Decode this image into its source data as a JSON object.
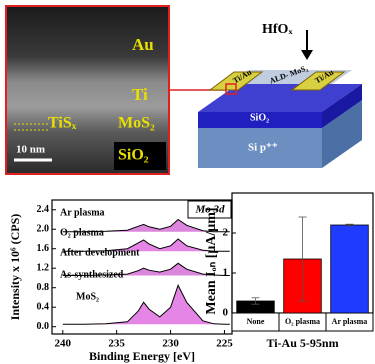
{
  "tem": {
    "labels": [
      "Au",
      "Ti",
      "TiSₓ",
      "MoS₂",
      "SiO₂"
    ],
    "scale": "10 nm"
  },
  "schematic": {
    "gate": "HfOₓ",
    "contact_left": "Ti/Au",
    "channel": "ALD- MoS₂",
    "contact_right": "Ti/Au",
    "oxide": "SiO₂",
    "substrate": "Si p⁺⁺"
  },
  "chart_data": [
    {
      "type": "line",
      "xlabel": "Binding Energy [eV]",
      "ylabel": "Intensity x 10⁶ (CPS)",
      "label_box": "Mo 3d",
      "annotations": [
        "Ar plasma",
        "O₂ plasma",
        "After development",
        "As-synthesized",
        "MoS₂"
      ],
      "x": [
        240,
        238,
        236,
        234,
        233,
        232.5,
        232,
        231,
        230,
        229.3,
        228.5,
        227,
        226,
        225,
        224.5
      ],
      "xlim": [
        241,
        224.3
      ],
      "xticks": [
        240,
        235,
        230,
        225
      ],
      "ylim": [
        -0.15,
        2.6
      ],
      "yticks": [
        {
          "value": 0,
          "label": "0.0"
        },
        0.4,
        0.8,
        {
          "value": 1.2,
          "label": "1.2"
        },
        1.6,
        {
          "value": 2,
          "label": "2.0"
        },
        2.4
      ],
      "series": [
        {
          "name": "Ar plasma",
          "color": "#000000",
          "values": [
            1.95,
            1.95,
            1.96,
            1.98,
            2.06,
            2.1,
            2.05,
            2.0,
            2.06,
            2.2,
            2.08,
            1.97,
            1.95,
            1.95,
            1.95
          ]
        },
        {
          "name": "O₂ plasma",
          "color": "#000000",
          "values": [
            1.55,
            1.55,
            1.56,
            1.6,
            1.72,
            1.78,
            1.7,
            1.6,
            1.66,
            1.8,
            1.66,
            1.57,
            1.55,
            1.55,
            1.55
          ]
        },
        {
          "name": "After development",
          "color": "#000000",
          "values": [
            1.05,
            1.05,
            1.06,
            1.08,
            1.15,
            1.2,
            1.16,
            1.12,
            1.18,
            1.3,
            1.18,
            1.08,
            1.06,
            1.05,
            1.05
          ]
        },
        {
          "name": "As-synthesized",
          "color": "#000000",
          "values": [
            0.05,
            0.05,
            0.06,
            0.1,
            0.32,
            0.5,
            0.36,
            0.2,
            0.4,
            0.85,
            0.5,
            0.12,
            0.06,
            0.05,
            0.05
          ]
        }
      ]
    },
    {
      "type": "bar",
      "ylabel": "Mean Iₒₙ [μA/μm]",
      "xlabel": "Ti-Au 5-95nm",
      "categories": [
        "None",
        "O₂ plasma",
        "Ar plasma"
      ],
      "values": [
        0.3,
        1.35,
        2.2
      ],
      "errors": [
        0.08,
        1.05,
        0.02
      ],
      "colors": [
        "#000000",
        "#ff0000",
        "#1f3bff"
      ],
      "ylim": [
        0,
        3
      ],
      "yticks": [
        0,
        1,
        2
      ]
    }
  ]
}
